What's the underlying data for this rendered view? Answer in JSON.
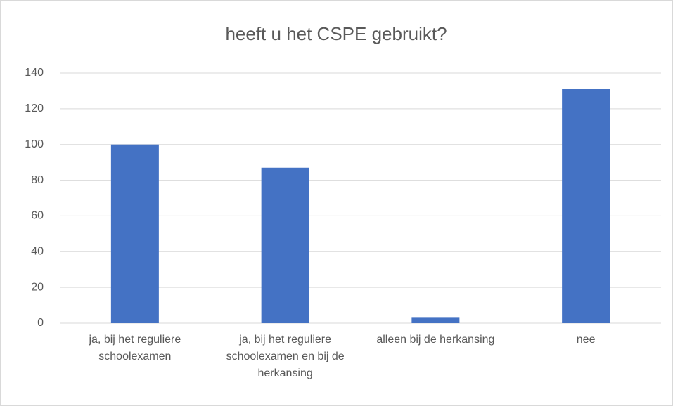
{
  "chart_data": {
    "type": "bar",
    "title": "heeft u het CSPE gebruikt?",
    "categories": [
      "ja, bij het reguliere schoolexamen",
      "ja, bij het reguliere schoolexamen en bij de herkansing",
      "alleen bij de herkansing",
      "nee"
    ],
    "values": [
      100,
      87,
      3,
      131
    ],
    "color": "#4472c4",
    "ylim": [
      0,
      140
    ],
    "yticks": [
      0,
      20,
      40,
      60,
      80,
      100,
      120,
      140
    ],
    "grid": true
  }
}
